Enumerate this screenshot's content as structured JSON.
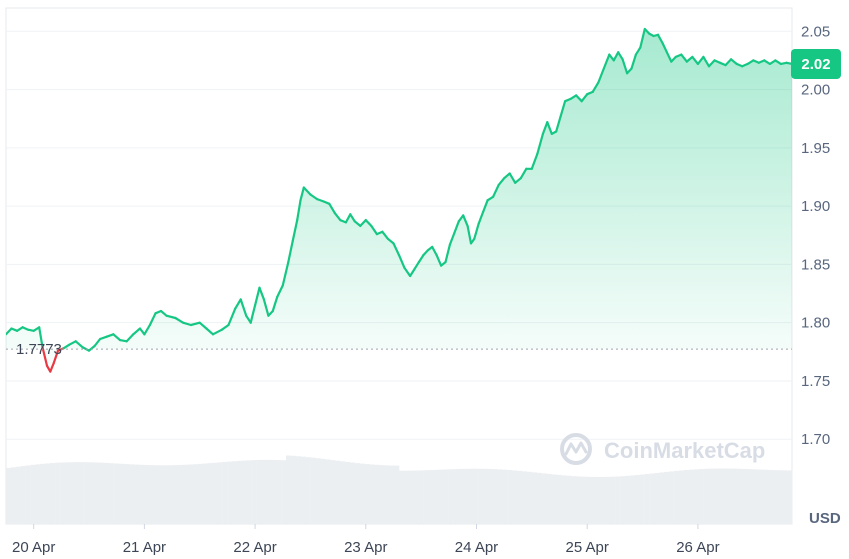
{
  "chart_data": {
    "type": "area",
    "ylabel_unit": "USD",
    "watermark": "CoinMarketCap",
    "reference_value_label": "1.7773",
    "reference_value": 1.7773,
    "current_price_label": "2.02",
    "current_price": 2.022,
    "y_ticks": [
      "2.05",
      "2.00",
      "1.95",
      "1.90",
      "1.85",
      "1.80",
      "1.75",
      "1.70"
    ],
    "y_tick_values": [
      2.05,
      2.0,
      1.95,
      1.9,
      1.85,
      1.8,
      1.75,
      1.7
    ],
    "ylim": [
      1.665,
      2.07
    ],
    "x_ticks": [
      "20 Apr",
      "21 Apr",
      "22 Apr",
      "23 Apr",
      "24 Apr",
      "25 Apr",
      "26 Apr"
    ],
    "x_tick_values": [
      0,
      1,
      2,
      3,
      4,
      5,
      6
    ],
    "xlim": [
      -0.25,
      6.85
    ],
    "grid": true,
    "colors": {
      "up_line": "#16c784",
      "down_line": "#ea3943",
      "reference_line": "#9ea3ab",
      "badge_bg": "#16c784",
      "volume_fill": "#eceff2"
    },
    "series": [
      {
        "values": [
          [
            -0.25,
            1.79
          ],
          [
            -0.2,
            1.795
          ],
          [
            -0.15,
            1.793
          ],
          [
            -0.1,
            1.796
          ],
          [
            -0.05,
            1.794
          ],
          [
            0.0,
            1.793
          ],
          [
            0.05,
            1.796
          ],
          [
            0.08,
            1.779
          ],
          [
            0.12,
            1.763
          ],
          [
            0.15,
            1.758
          ],
          [
            0.18,
            1.765
          ],
          [
            0.22,
            1.776
          ],
          [
            0.27,
            1.778
          ],
          [
            0.32,
            1.781
          ],
          [
            0.38,
            1.784
          ],
          [
            0.44,
            1.779
          ],
          [
            0.5,
            1.776
          ],
          [
            0.55,
            1.78
          ],
          [
            0.6,
            1.786
          ],
          [
            0.66,
            1.788
          ],
          [
            0.72,
            1.79
          ],
          [
            0.78,
            1.785
          ],
          [
            0.84,
            1.784
          ],
          [
            0.9,
            1.79
          ],
          [
            0.96,
            1.795
          ],
          [
            1.0,
            1.79
          ],
          [
            1.05,
            1.798
          ],
          [
            1.1,
            1.808
          ],
          [
            1.15,
            1.81
          ],
          [
            1.2,
            1.806
          ],
          [
            1.28,
            1.804
          ],
          [
            1.35,
            1.8
          ],
          [
            1.42,
            1.798
          ],
          [
            1.5,
            1.8
          ],
          [
            1.56,
            1.795
          ],
          [
            1.62,
            1.79
          ],
          [
            1.7,
            1.794
          ],
          [
            1.76,
            1.798
          ],
          [
            1.82,
            1.812
          ],
          [
            1.87,
            1.82
          ],
          [
            1.92,
            1.806
          ],
          [
            1.96,
            1.8
          ],
          [
            2.0,
            1.815
          ],
          [
            2.04,
            1.83
          ],
          [
            2.08,
            1.82
          ],
          [
            2.12,
            1.806
          ],
          [
            2.16,
            1.81
          ],
          [
            2.2,
            1.822
          ],
          [
            2.25,
            1.832
          ],
          [
            2.3,
            1.852
          ],
          [
            2.34,
            1.87
          ],
          [
            2.38,
            1.888
          ],
          [
            2.41,
            1.905
          ],
          [
            2.44,
            1.916
          ],
          [
            2.5,
            1.91
          ],
          [
            2.56,
            1.906
          ],
          [
            2.62,
            1.904
          ],
          [
            2.67,
            1.902
          ],
          [
            2.72,
            1.894
          ],
          [
            2.77,
            1.888
          ],
          [
            2.82,
            1.886
          ],
          [
            2.86,
            1.893
          ],
          [
            2.9,
            1.887
          ],
          [
            2.95,
            1.883
          ],
          [
            3.0,
            1.888
          ],
          [
            3.05,
            1.883
          ],
          [
            3.1,
            1.876
          ],
          [
            3.15,
            1.878
          ],
          [
            3.2,
            1.872
          ],
          [
            3.25,
            1.868
          ],
          [
            3.3,
            1.858
          ],
          [
            3.35,
            1.847
          ],
          [
            3.4,
            1.84
          ],
          [
            3.44,
            1.846
          ],
          [
            3.48,
            1.852
          ],
          [
            3.52,
            1.858
          ],
          [
            3.56,
            1.862
          ],
          [
            3.6,
            1.865
          ],
          [
            3.64,
            1.858
          ],
          [
            3.68,
            1.849
          ],
          [
            3.72,
            1.852
          ],
          [
            3.76,
            1.867
          ],
          [
            3.8,
            1.877
          ],
          [
            3.84,
            1.887
          ],
          [
            3.88,
            1.892
          ],
          [
            3.92,
            1.883
          ],
          [
            3.95,
            1.868
          ],
          [
            3.98,
            1.872
          ],
          [
            4.02,
            1.885
          ],
          [
            4.06,
            1.895
          ],
          [
            4.1,
            1.905
          ],
          [
            4.15,
            1.908
          ],
          [
            4.2,
            1.918
          ],
          [
            4.25,
            1.924
          ],
          [
            4.3,
            1.928
          ],
          [
            4.35,
            1.92
          ],
          [
            4.4,
            1.924
          ],
          [
            4.45,
            1.932
          ],
          [
            4.5,
            1.932
          ],
          [
            4.55,
            1.945
          ],
          [
            4.6,
            1.962
          ],
          [
            4.64,
            1.972
          ],
          [
            4.68,
            1.962
          ],
          [
            4.72,
            1.964
          ],
          [
            4.76,
            1.977
          ],
          [
            4.8,
            1.99
          ],
          [
            4.85,
            1.992
          ],
          [
            4.9,
            1.995
          ],
          [
            4.95,
            1.99
          ],
          [
            5.0,
            1.996
          ],
          [
            5.05,
            1.998
          ],
          [
            5.1,
            2.006
          ],
          [
            5.15,
            2.018
          ],
          [
            5.2,
            2.03
          ],
          [
            5.24,
            2.025
          ],
          [
            5.28,
            2.032
          ],
          [
            5.32,
            2.026
          ],
          [
            5.36,
            2.014
          ],
          [
            5.4,
            2.018
          ],
          [
            5.44,
            2.03
          ],
          [
            5.48,
            2.036
          ],
          [
            5.52,
            2.052
          ],
          [
            5.56,
            2.048
          ],
          [
            5.6,
            2.046
          ],
          [
            5.64,
            2.047
          ],
          [
            5.68,
            2.04
          ],
          [
            5.72,
            2.032
          ],
          [
            5.76,
            2.024
          ],
          [
            5.8,
            2.028
          ],
          [
            5.85,
            2.03
          ],
          [
            5.9,
            2.024
          ],
          [
            5.95,
            2.028
          ],
          [
            6.0,
            2.022
          ],
          [
            6.05,
            2.028
          ],
          [
            6.1,
            2.02
          ],
          [
            6.15,
            2.025
          ],
          [
            6.2,
            2.023
          ],
          [
            6.25,
            2.021
          ],
          [
            6.3,
            2.026
          ],
          [
            6.35,
            2.022
          ],
          [
            6.4,
            2.02
          ],
          [
            6.45,
            2.022
          ],
          [
            6.5,
            2.025
          ],
          [
            6.55,
            2.023
          ],
          [
            6.6,
            2.025
          ],
          [
            6.65,
            2.022
          ],
          [
            6.7,
            2.025
          ],
          [
            6.75,
            2.022
          ],
          [
            6.8,
            2.023
          ],
          [
            6.85,
            2.022
          ]
        ]
      }
    ]
  }
}
